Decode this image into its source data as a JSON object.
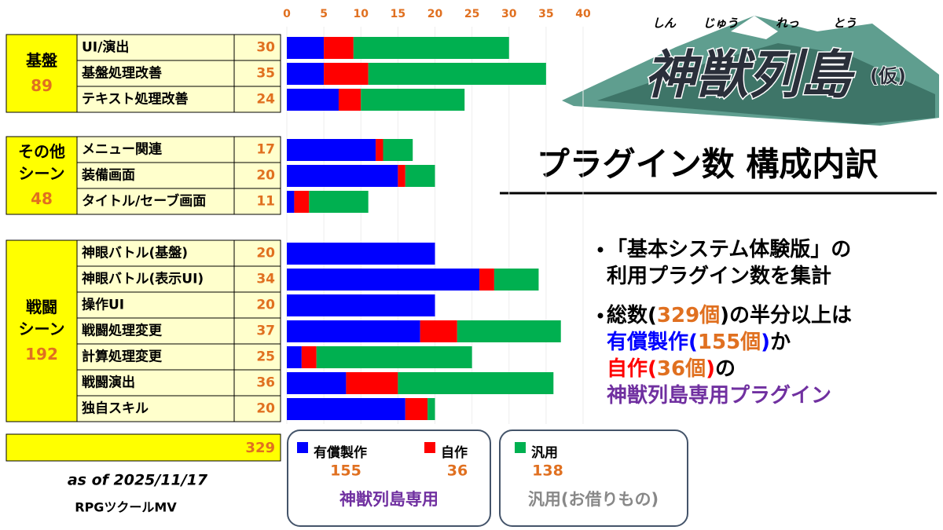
{
  "logo": {
    "title": "神獣列島",
    "suffix": "(仮)",
    "ruby": [
      "しん",
      "じゅう",
      "れっ",
      "とう"
    ]
  },
  "heading": "プラグイン数 構成内訳",
  "chart_data": {
    "type": "bar",
    "orientation": "horizontal",
    "stacked": true,
    "xlim": [
      0,
      40
    ],
    "xticks": [
      0,
      5,
      10,
      15,
      20,
      25,
      30,
      35,
      40
    ],
    "grid": true,
    "groups": [
      {
        "label": [
          "基盤"
        ],
        "total": 89,
        "rows": 3
      },
      {
        "label": [
          "その他",
          "シーン"
        ],
        "total": 48,
        "rows": 3
      },
      {
        "label": [
          "戦闘",
          "シーン"
        ],
        "total": 192,
        "rows": 7
      }
    ],
    "categories": [
      "UI/演出",
      "基盤処理改善",
      "テキスト処理改善",
      "メニュー関連",
      "装備画面",
      "タイトル/セーブ画面",
      "神眼バトル(基盤)",
      "神眼バトル(表示UI)",
      "操作UI",
      "戦闘処理変更",
      "計算処理変更",
      "戦闘演出",
      "独自スキル"
    ],
    "row_totals": [
      30,
      35,
      24,
      17,
      20,
      11,
      20,
      34,
      20,
      37,
      25,
      36,
      20
    ],
    "series": [
      {
        "name": "有償製作",
        "color": "#0000ff",
        "total": 155,
        "values": [
          5,
          5,
          7,
          12,
          15,
          1,
          20,
          26,
          20,
          18,
          2,
          8,
          16
        ]
      },
      {
        "name": "自作",
        "color": "#ff0000",
        "total": 36,
        "values": [
          4,
          6,
          3,
          1,
          1,
          2,
          0,
          2,
          0,
          5,
          2,
          7,
          3
        ]
      },
      {
        "name": "汎用",
        "color": "#00b050",
        "total": 138,
        "values": [
          21,
          24,
          14,
          4,
          4,
          8,
          0,
          6,
          0,
          14,
          21,
          21,
          1
        ]
      }
    ],
    "grand_total": 329,
    "legend_groups": [
      "神獣列島専用",
      "汎用(お借りもの)"
    ]
  },
  "notes": [
    [
      [
        {
          "text": "「基本システム体験版」の",
          "color": "#000000"
        }
      ],
      [
        {
          "text": "利用プラグイン数を集計",
          "color": "#000000"
        }
      ]
    ],
    [
      [
        {
          "text": "総数(",
          "color": "#000000"
        },
        {
          "text": "329個",
          "color": "#e07020"
        },
        {
          "text": ")の半分以上は",
          "color": "#000000"
        }
      ],
      [
        {
          "text": "有償製作(",
          "color": "#0000ff"
        },
        {
          "text": "155個",
          "color": "#e07020"
        },
        {
          "text": ")",
          "color": "#0000ff"
        },
        {
          "text": "か",
          "color": "#000000"
        }
      ],
      [
        {
          "text": "自作(",
          "color": "#ff0000"
        },
        {
          "text": "36個",
          "color": "#e07020"
        },
        {
          "text": ")",
          "color": "#ff0000"
        },
        {
          "text": "の",
          "color": "#000000"
        }
      ],
      [
        {
          "text": "神獣列島専用プラグイン",
          "color": "#7030a0"
        }
      ]
    ]
  ],
  "footer": {
    "date": "as of 2025/11/17",
    "engine": "RPGツクールMV"
  }
}
